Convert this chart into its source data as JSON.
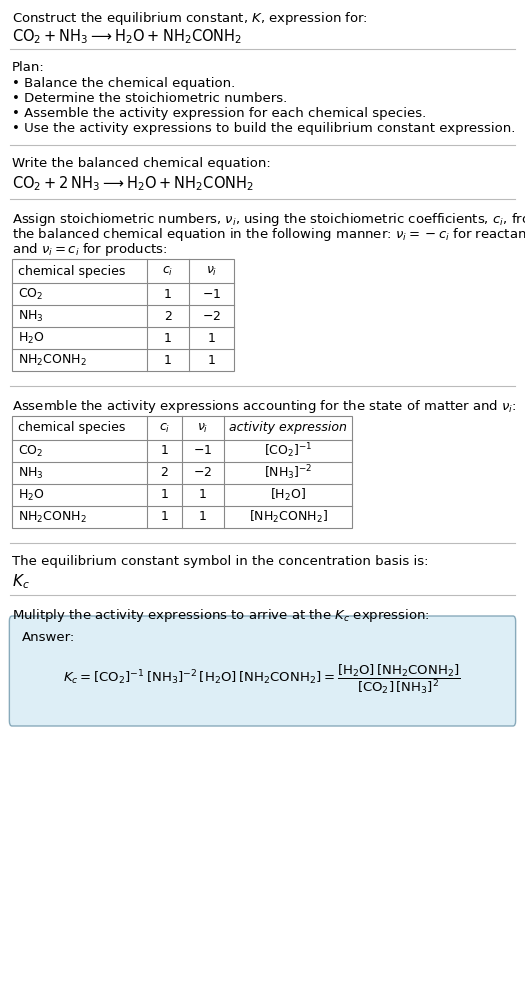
{
  "title_line1": "Construct the equilibrium constant, $K$, expression for:",
  "title_line2": "$\\mathrm{CO_2 + NH_3 \\longrightarrow H_2O + NH_2CONH_2}$",
  "plan_header": "Plan:",
  "plan_items": [
    "• Balance the chemical equation.",
    "• Determine the stoichiometric numbers.",
    "• Assemble the activity expression for each chemical species.",
    "• Use the activity expressions to build the equilibrium constant expression."
  ],
  "balanced_eq_header": "Write the balanced chemical equation:",
  "balanced_eq": "$\\mathrm{CO_2 + 2\\,NH_3 \\longrightarrow H_2O + NH_2CONH_2}$",
  "stoich_text1": "Assign stoichiometric numbers, $\\nu_i$, using the stoichiometric coefficients, $c_i$, from",
  "stoich_text2": "the balanced chemical equation in the following manner: $\\nu_i = -c_i$ for reactants",
  "stoich_text3": "and $\\nu_i = c_i$ for products:",
  "table1_headers": [
    "chemical species",
    "$c_i$",
    "$\\nu_i$"
  ],
  "table1_rows": [
    [
      "$\\mathrm{CO_2}$",
      "1",
      "$-1$"
    ],
    [
      "$\\mathrm{NH_3}$",
      "2",
      "$-2$"
    ],
    [
      "$\\mathrm{H_2O}$",
      "1",
      "1"
    ],
    [
      "$\\mathrm{NH_2CONH_2}$",
      "1",
      "1"
    ]
  ],
  "activity_header": "Assemble the activity expressions accounting for the state of matter and $\\nu_i$:",
  "table2_headers": [
    "chemical species",
    "$c_i$",
    "$\\nu_i$",
    "activity expression"
  ],
  "table2_rows": [
    [
      "$\\mathrm{CO_2}$",
      "1",
      "$-1$",
      "$[\\mathrm{CO_2}]^{-1}$"
    ],
    [
      "$\\mathrm{NH_3}$",
      "2",
      "$-2$",
      "$[\\mathrm{NH_3}]^{-2}$"
    ],
    [
      "$\\mathrm{H_2O}$",
      "1",
      "1",
      "$[\\mathrm{H_2O}]$"
    ],
    [
      "$\\mathrm{NH_2CONH_2}$",
      "1",
      "1",
      "$[\\mathrm{NH_2CONH_2}]$"
    ]
  ],
  "kc_symbol_header": "The equilibrium constant symbol in the concentration basis is:",
  "kc_symbol": "$K_c$",
  "multiply_header": "Mulitply the activity expressions to arrive at the $K_c$ expression:",
  "answer_label": "Answer:",
  "bg_color": "#ffffff",
  "answer_bg_color": "#ddeef6",
  "answer_border_color": "#88aabb",
  "separator_color": "#bbbbbb",
  "font_size": 9.5
}
